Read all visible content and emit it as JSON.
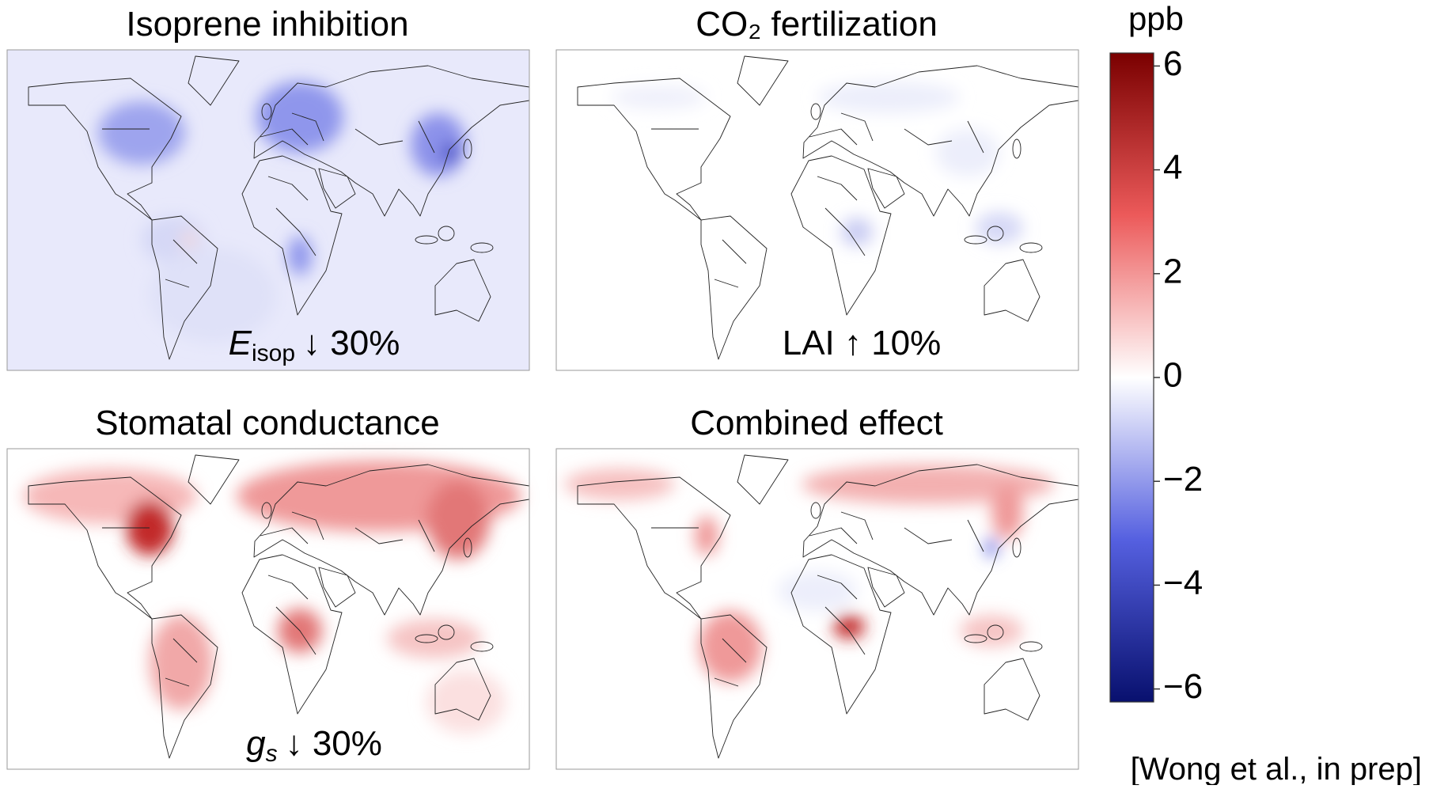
{
  "panels": [
    {
      "title": "Isoprene inhibition",
      "annotation": {
        "symbol": "E",
        "subscript": "isop",
        "text": "↓ 30%"
      }
    },
    {
      "title": "CO₂ fertilization",
      "annotation": {
        "text": "LAI ↑ 10%"
      }
    },
    {
      "title": "Stomatal conductance",
      "annotation": {
        "symbol": "g",
        "subscript": "s",
        "text": "↓ 30%"
      }
    },
    {
      "title": "Combined effect"
    }
  ],
  "chart_data": {
    "type": "colorbar",
    "title": "ppb",
    "ylim": [
      -6.25,
      6.25
    ],
    "yticks": [
      {
        "value": -6,
        "label": "−6"
      },
      {
        "value": -4,
        "label": "−4"
      },
      {
        "value": -2,
        "label": "−2"
      },
      0,
      2,
      4,
      6
    ],
    "colors": [
      "#08106e",
      "#5560e0",
      "#ffffff",
      "#ec5a5a",
      "#7a0000"
    ]
  },
  "source": "[Wong et al., in prep]"
}
